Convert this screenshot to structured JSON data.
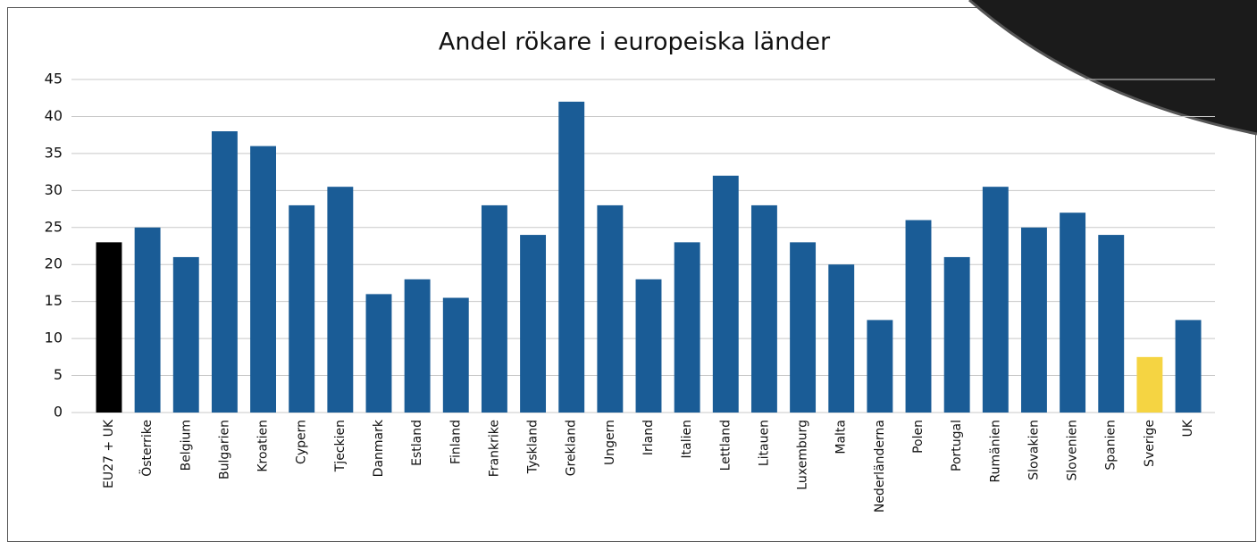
{
  "chart_data": {
    "type": "bar",
    "title": "Andel rökare i europeiska länder",
    "categories": [
      "EU27 + UK",
      "Österrike",
      "Belgium",
      "Bulgarien",
      "Kroatien",
      "Cypern",
      "Tjeckien",
      "Danmark",
      "Estland",
      "Finland",
      "Frankrike",
      "Tyskland",
      "Grekland",
      "Ungern",
      "Irland",
      "Italien",
      "Lettland",
      "Litauen",
      "Luxemburg",
      "Malta",
      "Nederländerna",
      "Polen",
      "Portugal",
      "Rumänien",
      "Slovakien",
      "Slovenien",
      "Spanien",
      "Sverige",
      "UK"
    ],
    "values": [
      23,
      25,
      21,
      38,
      36,
      28,
      30.5,
      16,
      18,
      15.5,
      28,
      24,
      42,
      28,
      18,
      23,
      32,
      28,
      23,
      20,
      12.5,
      26,
      21,
      30.5,
      25,
      27,
      24,
      7.5,
      12.5
    ],
    "colors": [
      "#000000",
      "#1a5c96",
      "#1a5c96",
      "#1a5c96",
      "#1a5c96",
      "#1a5c96",
      "#1a5c96",
      "#1a5c96",
      "#1a5c96",
      "#1a5c96",
      "#1a5c96",
      "#1a5c96",
      "#1a5c96",
      "#1a5c96",
      "#1a5c96",
      "#1a5c96",
      "#1a5c96",
      "#1a5c96",
      "#1a5c96",
      "#1a5c96",
      "#1a5c96",
      "#1a5c96",
      "#1a5c96",
      "#1a5c96",
      "#1a5c96",
      "#1a5c96",
      "#1a5c96",
      "#f5d442",
      "#1a5c96"
    ],
    "ylim": [
      0,
      45
    ],
    "yticks": [
      0,
      5,
      10,
      15,
      20,
      25,
      30,
      35,
      40,
      45
    ],
    "grid": true
  }
}
